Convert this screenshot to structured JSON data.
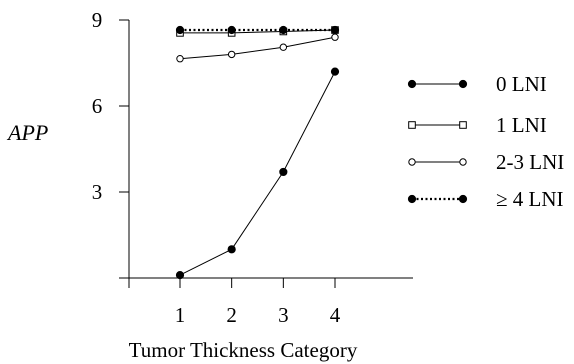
{
  "chart_data": {
    "type": "line",
    "title": "",
    "xlabel": "Tumor Thickness Category",
    "ylabel": "APP",
    "x": [
      1,
      2,
      3,
      4
    ],
    "xticks": [
      "1",
      "2",
      "3",
      "4"
    ],
    "yticks": [
      "3",
      "6",
      "9"
    ],
    "ylim": [
      0,
      9
    ],
    "xlim": [
      0,
      5.5
    ],
    "grid": false,
    "legend_position": "right",
    "series": [
      {
        "name": "0 LNI",
        "values": [
          0.1,
          1.0,
          3.7,
          7.2
        ],
        "marker": "filled-circle",
        "line_style": "solid",
        "color": "#000000"
      },
      {
        "name": "1 LNI",
        "values": [
          8.55,
          8.55,
          8.6,
          8.65
        ],
        "marker": "open-square",
        "line_style": "solid",
        "color": "#000000"
      },
      {
        "name": "2-3 LNI",
        "values": [
          7.65,
          7.8,
          8.05,
          8.4
        ],
        "marker": "open-circle",
        "line_style": "solid",
        "color": "#000000"
      },
      {
        "name": "≥ 4 LNI",
        "values": [
          8.65,
          8.65,
          8.65,
          8.65
        ],
        "marker": "filled-circle",
        "line_style": "dotted",
        "color": "#000000"
      }
    ]
  }
}
